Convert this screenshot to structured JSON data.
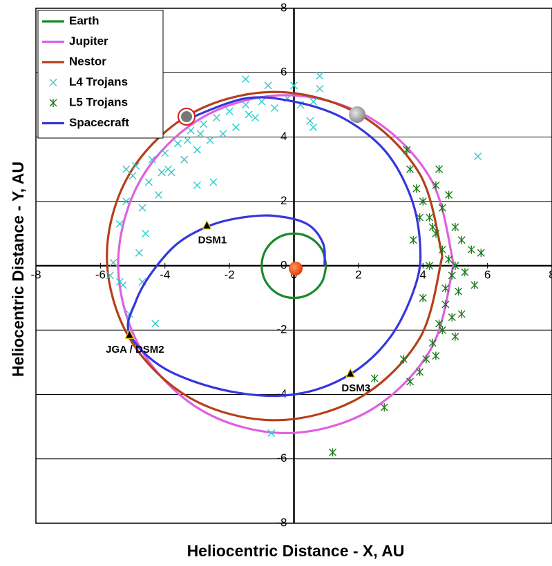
{
  "chart_data": {
    "type": "scatter",
    "x_label": "Heliocentric Distance - X, AU",
    "y_label": "Heliocentric Distance - Y, AU",
    "xlim": [
      -8,
      8
    ],
    "ylim": [
      -8,
      8
    ],
    "xticks": [
      -8,
      -6,
      -4,
      -2,
      0,
      2,
      4,
      6,
      8
    ],
    "yticks": [
      -8,
      -6,
      -4,
      -2,
      0,
      2,
      4,
      6,
      8
    ],
    "grid": true,
    "legend": "top-left",
    "series": [
      {
        "name": "Earth",
        "color": "#1a8a2a",
        "style": "line",
        "x": [
          1,
          0.87,
          0.5,
          0,
          -0.5,
          -0.87,
          -1,
          -0.87,
          -0.5,
          0,
          0.5,
          0.87,
          1
        ],
        "y": [
          0,
          0.5,
          0.87,
          1,
          0.87,
          0.5,
          0,
          -0.5,
          -0.87,
          -1,
          -0.87,
          -0.5,
          0
        ]
      },
      {
        "name": "Jupiter",
        "color": "#e060e0",
        "style": "line",
        "x": [
          4.95,
          4.25,
          2.35,
          -0.25,
          -2.85,
          -4.75,
          -5.45,
          -4.75,
          -2.85,
          -0.25,
          2.35,
          4.25,
          4.95
        ],
        "y": [
          0.05,
          2.68,
          4.6,
          5.3,
          4.6,
          2.68,
          0.05,
          -2.58,
          -4.5,
          -5.2,
          -4.5,
          -2.58,
          0.05
        ]
      },
      {
        "name": "Nestor",
        "color": "#b5401a",
        "style": "line",
        "x": [
          4.6,
          3.9,
          2.0,
          -0.6,
          -3.2,
          -5.1,
          -5.8,
          -5.1,
          -3.2,
          -0.6,
          2.0,
          3.9,
          4.6
        ],
        "y": [
          0.3,
          2.85,
          4.72,
          5.4,
          4.72,
          2.85,
          0.3,
          -2.25,
          -4.12,
          -4.8,
          -4.12,
          -2.25,
          0.3
        ]
      },
      {
        "name": "L4 Trojans",
        "color": "#30c8c8",
        "style": "x",
        "x": [
          -5.6,
          -5.7,
          -5.3,
          -5.4,
          -5.2,
          -5.0,
          -4.9,
          -4.7,
          -4.5,
          -4.4,
          -4.2,
          -4.0,
          -3.8,
          -3.6,
          -3.4,
          -3.2,
          -3.0,
          -2.8,
          -2.6,
          -2.4,
          -2.2,
          -2.0,
          -1.8,
          -1.5,
          -1.2,
          -1.0,
          -0.6,
          -0.2,
          0.2,
          0.6,
          -0.8,
          -1.5,
          0.8,
          0.8,
          0.5,
          0.6,
          -3.0,
          -2.5,
          -4.6,
          -5.1,
          -4.3,
          -4.7,
          -5.4,
          0.0,
          -0.7,
          5.7,
          -5.2,
          -4.8,
          -3.9,
          -3.3,
          -2.9,
          -1.4,
          -4.1
        ],
        "y": [
          0.1,
          -0.3,
          -0.6,
          1.3,
          2.0,
          2.8,
          3.1,
          1.8,
          2.6,
          3.3,
          2.2,
          3.5,
          2.9,
          3.8,
          3.3,
          4.2,
          3.6,
          4.4,
          3.9,
          4.6,
          4.1,
          4.8,
          4.3,
          5.0,
          4.6,
          5.1,
          4.9,
          5.2,
          5.0,
          5.1,
          5.6,
          5.8,
          5.9,
          5.5,
          4.5,
          4.3,
          2.5,
          2.6,
          1.0,
          -1.5,
          -1.8,
          -0.5,
          -0.5,
          5.6,
          -5.2,
          3.4,
          3.0,
          0.4,
          3.0,
          3.9,
          4.1,
          4.7,
          2.9
        ]
      },
      {
        "name": "L5 Trojans",
        "color": "#1a7a1a",
        "style": "star",
        "x": [
          3.5,
          3.6,
          3.8,
          4.0,
          4.2,
          4.4,
          4.6,
          4.8,
          5.0,
          5.2,
          4.9,
          5.1,
          4.7,
          4.5,
          4.3,
          4.1,
          3.9,
          3.6,
          4.4,
          5.3,
          5.5,
          5.6,
          5.8,
          4.6,
          4.4,
          3.9,
          4.0,
          4.6,
          5.0,
          4.8,
          3.4,
          2.5,
          2.8,
          1.2,
          4.2,
          5.2,
          4.5,
          3.7,
          4.7,
          5.0,
          4.3,
          4.9
        ],
        "y": [
          3.6,
          3.0,
          2.4,
          2.0,
          1.5,
          1.0,
          0.5,
          0.2,
          1.2,
          0.8,
          -0.3,
          -0.8,
          -1.2,
          -1.8,
          -2.4,
          -2.9,
          -3.3,
          -3.6,
          -2.8,
          -0.2,
          0.5,
          -0.6,
          0.4,
          1.8,
          2.5,
          1.5,
          -1.0,
          -2.0,
          -2.2,
          2.2,
          -2.9,
          -3.5,
          -4.4,
          -5.8,
          0.0,
          -1.5,
          3.0,
          0.8,
          -0.7,
          0.0,
          1.2,
          -1.6
        ]
      },
      {
        "name": "Spacecraft",
        "color": "#3535e0",
        "style": "line",
        "x": [
          0.95,
          0.9,
          0.4,
          -0.6,
          -1.6,
          -2.6,
          -3.6,
          -4.4,
          -4.9,
          -5.1,
          -4.0,
          -2.0,
          0.0,
          1.7,
          3.0,
          3.8,
          3.9,
          3.6,
          2.8,
          1.5,
          0.0,
          -1.5,
          -3.2
        ],
        "y": [
          0,
          0.7,
          1.3,
          1.55,
          1.5,
          1.25,
          0.7,
          -0.2,
          -1.1,
          -2.1,
          -3.2,
          -3.9,
          -4.0,
          -3.4,
          -2.2,
          -0.5,
          0.8,
          2.2,
          3.6,
          4.6,
          5.1,
          5.2,
          4.6
        ]
      }
    ],
    "annotations": [
      {
        "text": "DSM1",
        "x": -2.7,
        "y": 1.25
      },
      {
        "text": "JGA / DSM2",
        "x": -5.1,
        "y": -2.15
      },
      {
        "text": "DSM3",
        "x": 1.75,
        "y": -3.35
      }
    ]
  }
}
